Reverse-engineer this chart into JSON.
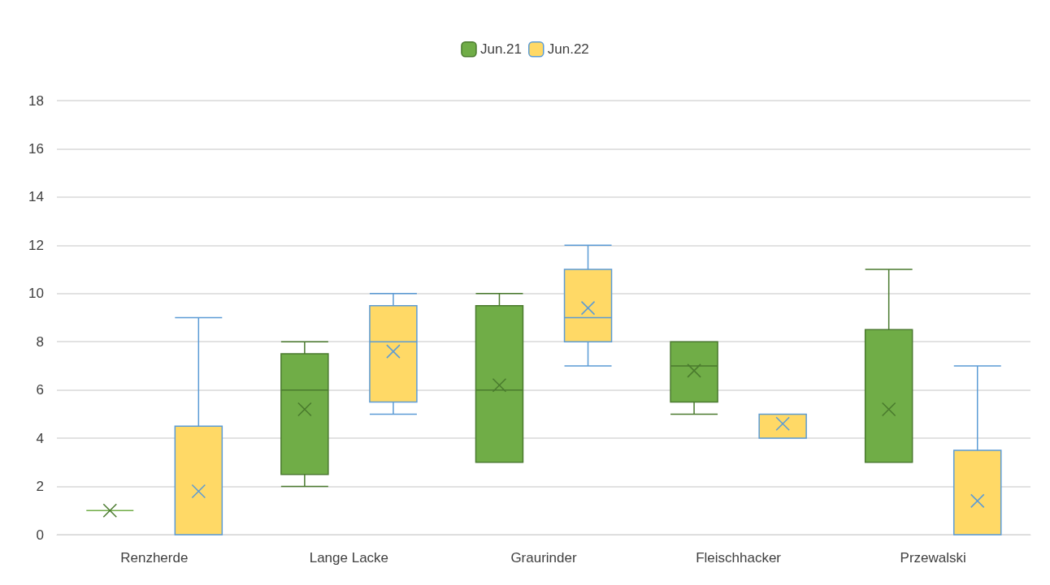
{
  "chart_data": {
    "type": "box",
    "categories": [
      "Renzherde",
      "Lange Lacke",
      "Graurinder",
      "Fleischhacker",
      "Przewalski"
    ],
    "series": [
      {
        "name": "Jun.21",
        "color": "#70ad47",
        "boxes": [
          {
            "low": 1,
            "q1": 1,
            "median": 1,
            "q3": 1,
            "high": 1,
            "mean": 1
          },
          {
            "low": 2,
            "q1": 2.5,
            "median": 6,
            "q3": 7.5,
            "high": 8,
            "mean": 5.2
          },
          {
            "low": 3,
            "q1": 3,
            "median": 6,
            "q3": 9.5,
            "high": 10,
            "mean": 6.2
          },
          {
            "low": 5,
            "q1": 5.5,
            "median": 7,
            "q3": 8,
            "high": 8,
            "mean": 6.8
          },
          {
            "low": 3,
            "q1": 3,
            "median": 3,
            "q3": 8.5,
            "high": 11,
            "mean": 5.2
          }
        ]
      },
      {
        "name": "Jun.22",
        "color": "#ffd966",
        "boxes": [
          {
            "low": 0,
            "q1": 0,
            "median": 0,
            "q3": 4.5,
            "high": 9,
            "mean": 1.8
          },
          {
            "low": 5,
            "q1": 5.5,
            "median": 8,
            "q3": 9.5,
            "high": 10,
            "mean": 7.6
          },
          {
            "low": 7,
            "q1": 8,
            "median": 9,
            "q3": 11,
            "high": 12,
            "mean": 9.4
          },
          {
            "low": 4,
            "q1": 4,
            "median": 4,
            "q3": 5,
            "high": 5,
            "mean": 4.6
          },
          {
            "low": 0,
            "q1": 0,
            "median": 0,
            "q3": 3.5,
            "high": 7,
            "mean": 1.4
          }
        ]
      }
    ],
    "ylim": [
      0,
      18
    ],
    "yticks": [
      0,
      2,
      4,
      6,
      8,
      10,
      12,
      14,
      16,
      18
    ],
    "grid": "y",
    "legend": "top",
    "marker": "cross"
  }
}
